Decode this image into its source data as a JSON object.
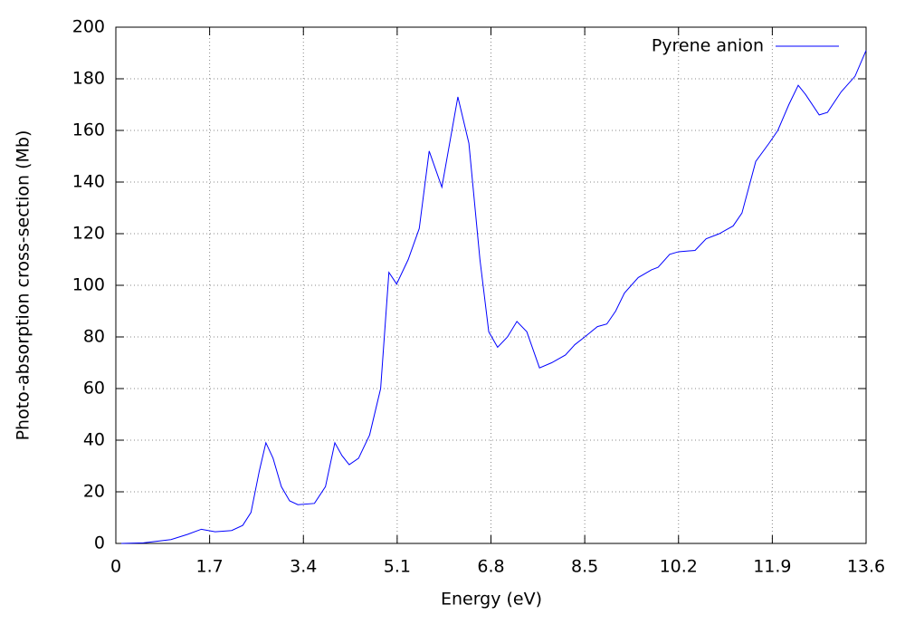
{
  "chart_data": {
    "type": "line",
    "xlabel": "Energy (eV)",
    "ylabel": "Photo-absorption cross-section (Mb)",
    "xlim": [
      0,
      13.6
    ],
    "ylim": [
      0,
      200
    ],
    "xticks": [
      0,
      1.7,
      3.4,
      5.1,
      6.8,
      8.5,
      10.2,
      11.9,
      13.6
    ],
    "yticks": [
      0,
      20,
      40,
      60,
      80,
      100,
      120,
      140,
      160,
      180,
      200
    ],
    "grid": true,
    "legend": "top right",
    "series": [
      {
        "name": "Pyrene anion",
        "color": "#0000ff",
        "x": [
          0.1,
          0.5,
          1.0,
          1.3,
          1.55,
          1.8,
          2.1,
          2.3,
          2.45,
          2.6,
          2.72,
          2.85,
          3.0,
          3.15,
          3.3,
          3.6,
          3.8,
          3.97,
          4.1,
          4.23,
          4.4,
          4.6,
          4.8,
          4.95,
          5.09,
          5.3,
          5.5,
          5.68,
          5.91,
          6.2,
          6.4,
          6.6,
          6.76,
          6.92,
          7.1,
          7.27,
          7.45,
          7.68,
          7.9,
          8.15,
          8.32,
          8.5,
          8.73,
          8.9,
          9.06,
          9.22,
          9.47,
          9.71,
          9.83,
          10.04,
          10.2,
          10.5,
          10.7,
          10.94,
          11.19,
          11.35,
          11.6,
          11.84,
          12.0,
          12.2,
          12.37,
          12.5,
          12.75,
          12.9,
          13.15,
          13.4,
          13.6
        ],
        "values": [
          0,
          0.2,
          1.5,
          3.5,
          5.5,
          4.5,
          5,
          7,
          12,
          28,
          39,
          33,
          22,
          16.5,
          15,
          15.5,
          22,
          39,
          34,
          30.5,
          33,
          42,
          60,
          105,
          100.5,
          110,
          122,
          152,
          138,
          173,
          155,
          110,
          82,
          76,
          80,
          86,
          82,
          68,
          70,
          73,
          77,
          80,
          84,
          85,
          90,
          97,
          103,
          106,
          107,
          112,
          113,
          113.5,
          118,
          120,
          123,
          128,
          148,
          155,
          160,
          170,
          177.5,
          174,
          166,
          167,
          175,
          181,
          191
        ]
      }
    ]
  }
}
